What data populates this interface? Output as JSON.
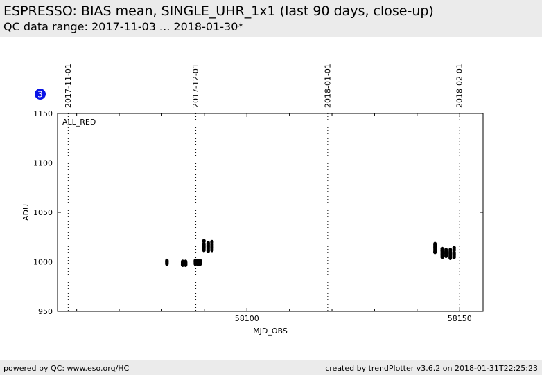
{
  "header": {
    "title": "ESPRESSO: BIAS mean, SINGLE_UHR_1x1 (last 90 days, close-up)",
    "subtitle": "QC data range: 2017-11-03 ... 2018-01-30*"
  },
  "badge": {
    "value": "3",
    "color": "#0a14e6"
  },
  "footer": {
    "left": "powered by QC: www.eso.org/HC",
    "right": "created by trendPlotter v3.6.2 on 2018-01-31T22:25:23"
  },
  "chart_data": {
    "type": "scatter",
    "panel_label": "ALL_RED",
    "xlabel": "MJD_OBS",
    "ylabel": "ADU",
    "xlim": [
      58055.5,
      58155.5
    ],
    "ylim": [
      950,
      1150
    ],
    "x_ticks": [
      58100,
      58150
    ],
    "y_ticks": [
      950,
      1000,
      1050,
      1100,
      1150
    ],
    "date_markers": [
      {
        "label": "2017-11-01",
        "x": 58058
      },
      {
        "label": "2017-12-01",
        "x": 58088
      },
      {
        "label": "2018-01-01",
        "x": 58119
      },
      {
        "label": "2018-02-01",
        "x": 58150
      }
    ],
    "series": [
      {
        "color": "#000000",
        "points": [
          [
            58081.2,
            998
          ],
          [
            58081.2,
            999
          ],
          [
            58081.2,
            1000
          ],
          [
            58081.2,
            1001
          ],
          [
            58084.9,
            997
          ],
          [
            58084.9,
            998
          ],
          [
            58084.9,
            999
          ],
          [
            58084.9,
            1000
          ],
          [
            58085.6,
            997
          ],
          [
            58085.6,
            998
          ],
          [
            58085.6,
            999
          ],
          [
            58085.6,
            1000
          ],
          [
            58087.9,
            998
          ],
          [
            58087.9,
            999
          ],
          [
            58087.9,
            1000
          ],
          [
            58087.9,
            1001
          ],
          [
            58088.5,
            998
          ],
          [
            58088.5,
            999
          ],
          [
            58088.5,
            1000
          ],
          [
            58088.5,
            1001
          ],
          [
            58089.0,
            998
          ],
          [
            58089.0,
            999
          ],
          [
            58089.0,
            1000
          ],
          [
            58089.0,
            1001
          ],
          [
            58089.9,
            1012
          ],
          [
            58089.9,
            1014
          ],
          [
            58089.9,
            1016
          ],
          [
            58089.9,
            1018
          ],
          [
            58089.9,
            1021
          ],
          [
            58090.9,
            1011
          ],
          [
            58090.9,
            1013
          ],
          [
            58090.9,
            1015
          ],
          [
            58090.9,
            1017
          ],
          [
            58090.9,
            1019
          ],
          [
            58091.8,
            1012
          ],
          [
            58091.8,
            1014
          ],
          [
            58091.8,
            1016
          ],
          [
            58091.8,
            1018
          ],
          [
            58091.8,
            1020
          ],
          [
            58144.2,
            1010
          ],
          [
            58144.2,
            1012
          ],
          [
            58144.2,
            1014
          ],
          [
            58144.2,
            1016
          ],
          [
            58144.2,
            1018
          ],
          [
            58145.9,
            1005
          ],
          [
            58145.9,
            1007
          ],
          [
            58145.9,
            1009
          ],
          [
            58145.9,
            1011
          ],
          [
            58145.9,
            1013
          ],
          [
            58146.8,
            1006
          ],
          [
            58146.8,
            1008
          ],
          [
            58146.8,
            1010
          ],
          [
            58146.8,
            1012
          ],
          [
            58147.8,
            1004
          ],
          [
            58147.8,
            1006
          ],
          [
            58147.8,
            1008
          ],
          [
            58147.8,
            1010
          ],
          [
            58147.8,
            1012
          ],
          [
            58148.7,
            1005
          ],
          [
            58148.7,
            1007
          ],
          [
            58148.7,
            1009
          ],
          [
            58148.7,
            1012
          ],
          [
            58148.7,
            1014
          ]
        ]
      }
    ]
  }
}
